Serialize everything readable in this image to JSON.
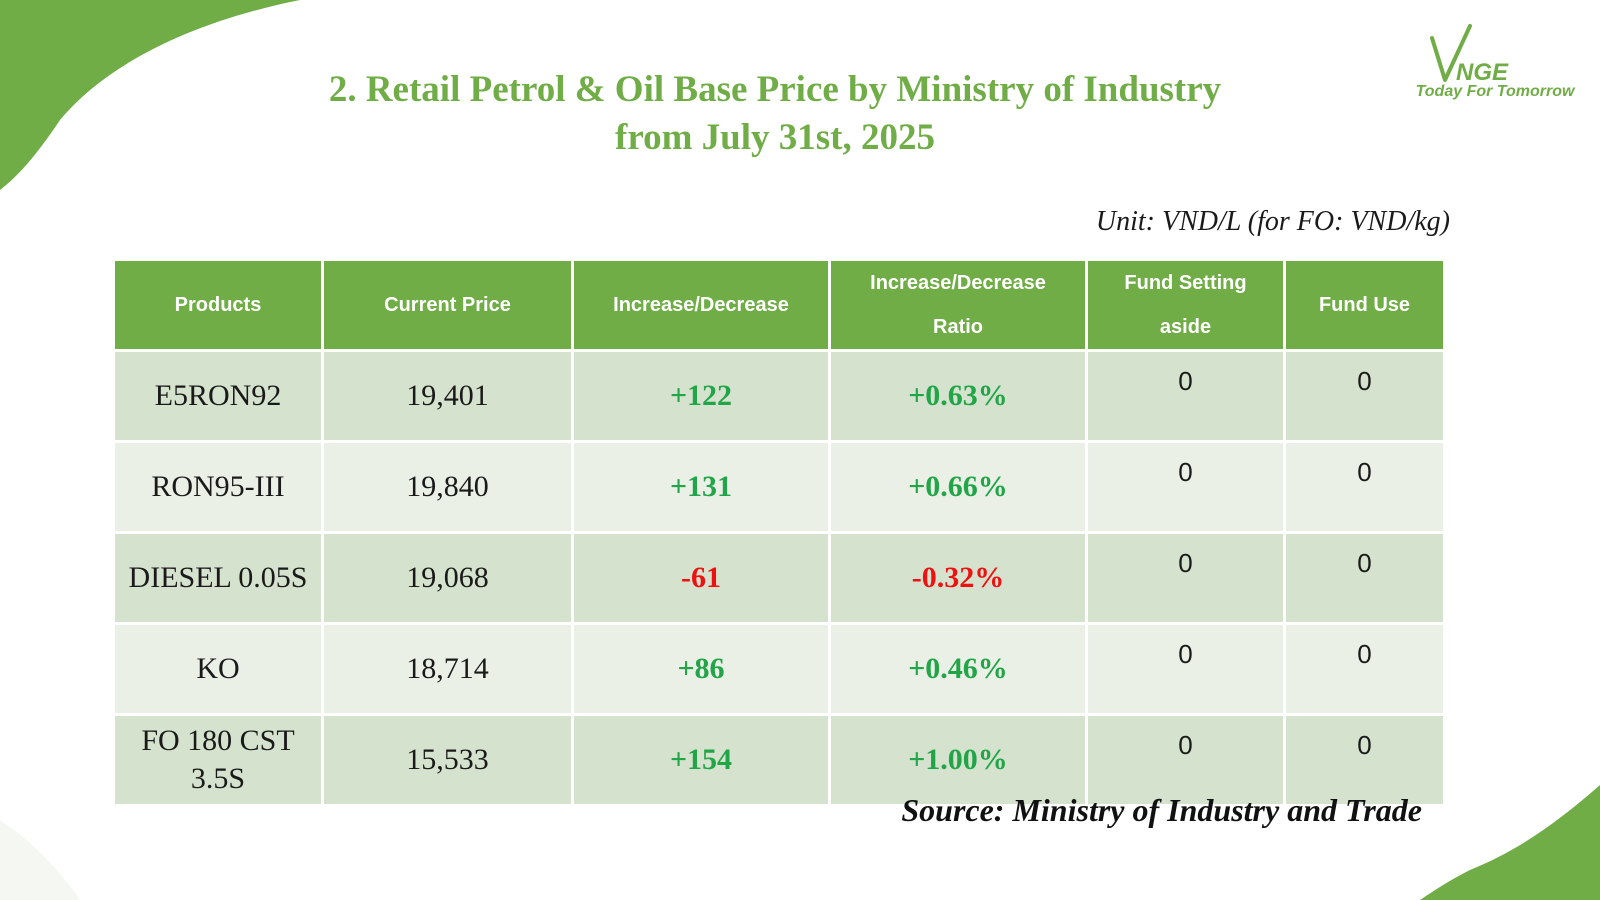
{
  "title": {
    "line1": "2. Retail Petrol & Oil Base Price by Ministry of Industry",
    "line2": "from July 31st, 2025"
  },
  "logo": {
    "brand": "VNGE",
    "tagline": "Today For Tomorrow"
  },
  "unit_note": "Unit: VND/L (for FO: VND/kg)",
  "table": {
    "headers": [
      {
        "line1": "Products",
        "line2": ""
      },
      {
        "line1": "Current Price",
        "line2": ""
      },
      {
        "line1": "Increase/Decrease",
        "line2": ""
      },
      {
        "line1": "Increase/Decrease",
        "line2": "Ratio"
      },
      {
        "line1": "Fund Setting",
        "line2": "aside"
      },
      {
        "line1": "Fund Use",
        "line2": ""
      }
    ],
    "rows": [
      {
        "product": "E5RON92",
        "price": "19,401",
        "change": "+122",
        "ratio": "+0.63%",
        "fund_setting": "0",
        "fund_use": "0",
        "direction": "up"
      },
      {
        "product": "RON95-III",
        "price": "19,840",
        "change": "+131",
        "ratio": "+0.66%",
        "fund_setting": "0",
        "fund_use": "0",
        "direction": "up"
      },
      {
        "product": "DIESEL 0.05S",
        "price": "19,068",
        "change": "-61",
        "ratio": "-0.32%",
        "fund_setting": "0",
        "fund_use": "0",
        "direction": "down"
      },
      {
        "product": "KO",
        "price": "18,714",
        "change": "+86",
        "ratio": "+0.46%",
        "fund_setting": "0",
        "fund_use": "0",
        "direction": "up"
      },
      {
        "product": "FO 180 CST 3.5S",
        "price": "15,533",
        "change": "+154",
        "ratio": "+1.00%",
        "fund_setting": "0",
        "fund_use": "0",
        "direction": "up"
      }
    ]
  },
  "source": "Source: Ministry of Industry and Trade",
  "colors": {
    "accent": "#70ad47",
    "row_dark": "#d5e2cd",
    "row_light": "#eaf0e6",
    "increase": "#22a548",
    "decrease": "#ee1111"
  }
}
